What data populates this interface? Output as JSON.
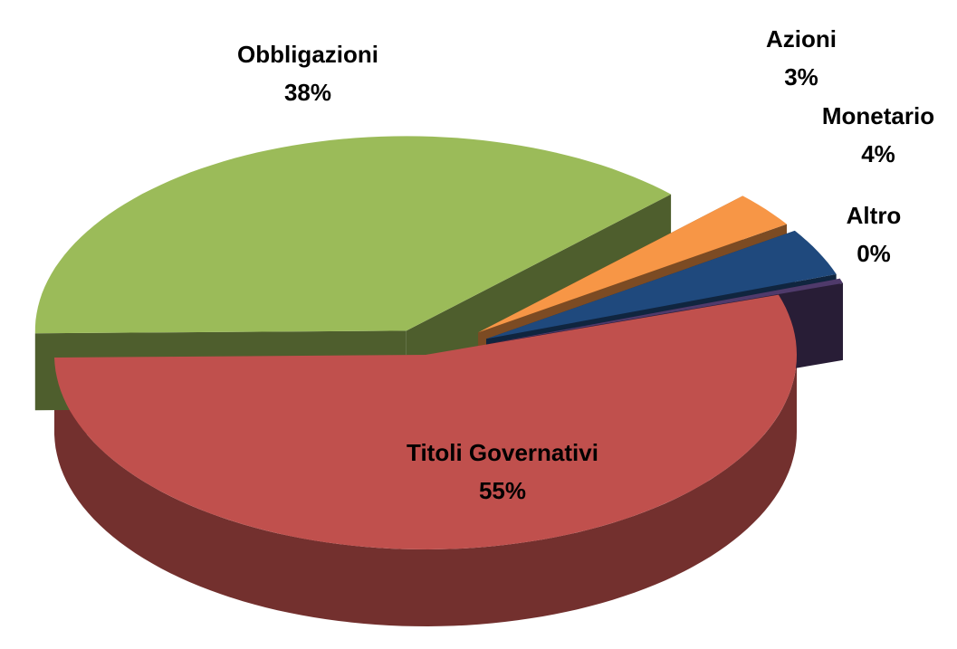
{
  "chart_data": {
    "type": "pie",
    "categories": [
      "Titoli Governativi",
      "Obbligazioni",
      "Azioni",
      "Monetario",
      "Altro"
    ],
    "values": [
      55,
      38,
      3,
      4,
      0.4
    ],
    "value_labels": [
      "55%",
      "38%",
      "3%",
      "4%",
      "0%"
    ],
    "colors": [
      "#c0504d",
      "#9bbb59",
      "#f79646",
      "#1f497d",
      "#4f3a6b"
    ]
  }
}
